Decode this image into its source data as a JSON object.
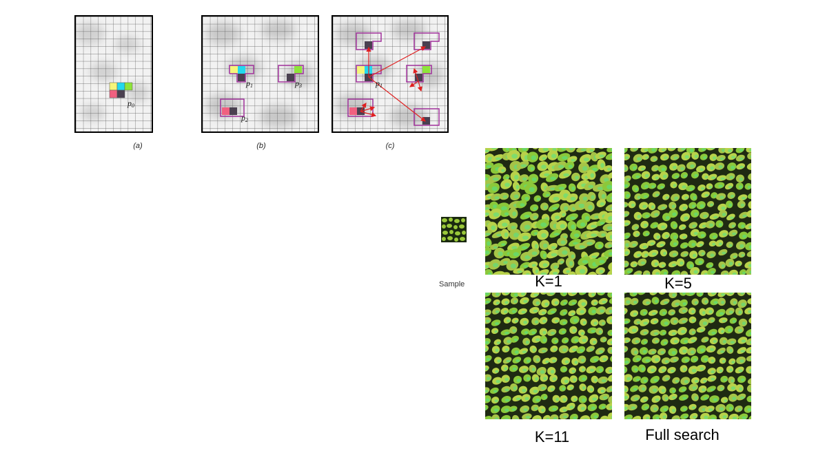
{
  "figure_top": {
    "panels": [
      {
        "caption": "(a)",
        "labels": [
          "p",
          "0"
        ]
      },
      {
        "caption": "(b)",
        "labels": [
          "p",
          "1",
          "p",
          "2",
          "p",
          "3"
        ]
      },
      {
        "caption": "(c)",
        "labels": [
          "p",
          "1"
        ]
      }
    ]
  },
  "figure_right": {
    "sample_label": "Sample",
    "textures": [
      {
        "label": "K=1"
      },
      {
        "label": "K=5"
      },
      {
        "label": "K=11"
      },
      {
        "label": "Full search"
      }
    ]
  },
  "colors": {
    "yellow": "#f5f57a",
    "cyan": "#22d8ee",
    "green": "#8ee43a",
    "pink": "#f06080",
    "dark": "#4a4050",
    "purple": "#a0309a",
    "red": "#e02020"
  }
}
